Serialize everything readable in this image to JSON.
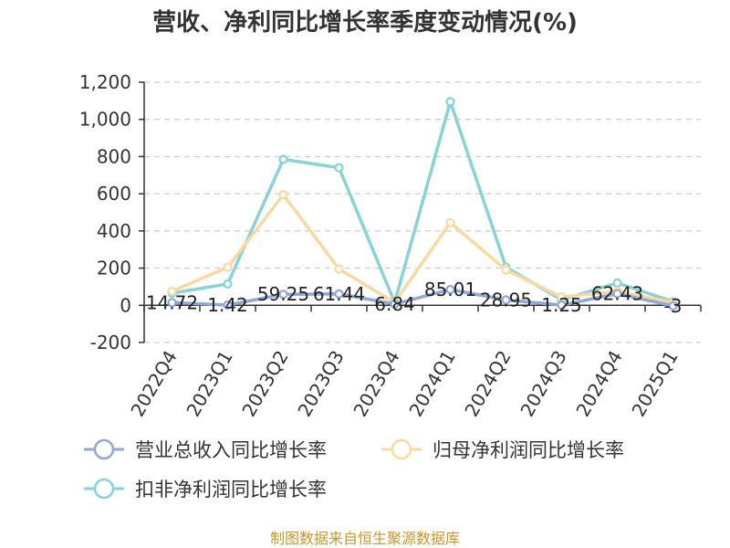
{
  "colors": {
    "revenue": "#8fa9d6",
    "net_profit": "#f9d99f",
    "deducted_profit": "#87d3d8",
    "grid": "#cccccc",
    "axis": "#333333",
    "source": "#c8962a"
  },
  "chart_data": {
    "type": "line",
    "title": "营收、净利同比增长率季度变动情况(%)",
    "categories": [
      "2022Q4",
      "2023Q1",
      "2023Q2",
      "2023Q3",
      "2023Q4",
      "2024Q1",
      "2024Q2",
      "2024Q3",
      "2024Q4",
      "2025Q1"
    ],
    "ylim": [
      -200,
      1200
    ],
    "yticks": [
      -200,
      0,
      200,
      400,
      600,
      800,
      1000,
      1200
    ],
    "ytick_labels": [
      "-200",
      "0",
      "200",
      "400",
      "600",
      "800",
      "1,000",
      "1,200"
    ],
    "grid": true,
    "legend_position": "bottom",
    "series": [
      {
        "key": "revenue",
        "name": "营业总收入同比增长率",
        "values": [
          14.72,
          1.42,
          59.25,
          61.44,
          6.84,
          85.01,
          28.95,
          1.25,
          62.43,
          -3
        ],
        "labels": [
          "14.72",
          "1.42",
          "59.25",
          "61.44",
          "6.84",
          "85.01",
          "28.95",
          "1.25",
          "62.43",
          "-3"
        ]
      },
      {
        "key": "net_profit",
        "name": "归母净利润同比增长率",
        "values": [
          75,
          205,
          595,
          195,
          15,
          445,
          190,
          45,
          75,
          15
        ]
      },
      {
        "key": "deducted_profit",
        "name": "扣非净利润同比增长率",
        "values": [
          65,
          115,
          785,
          740,
          15,
          1095,
          205,
          30,
          120,
          20
        ]
      }
    ]
  },
  "source_text": "制图数据来自恒生聚源数据库"
}
